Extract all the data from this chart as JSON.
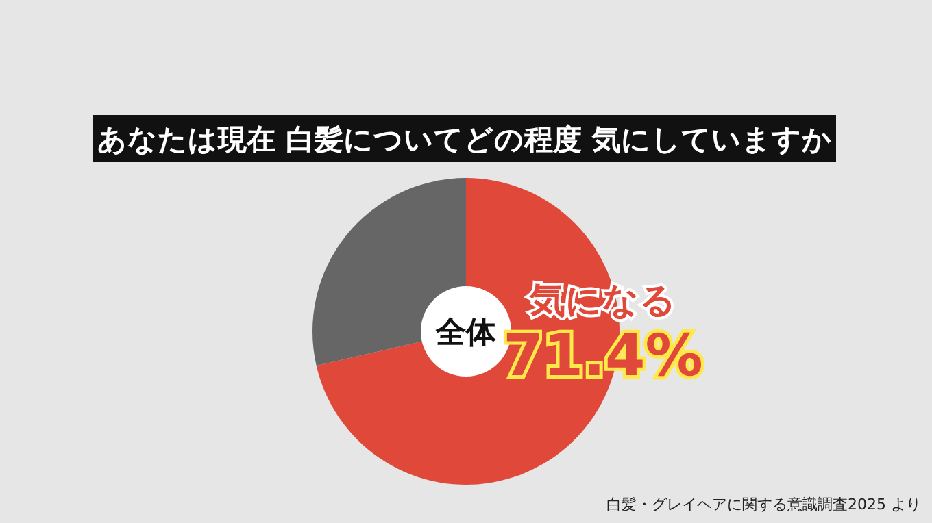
{
  "chart_data": {
    "type": "donut",
    "title": "あなたは現在 白髪についてどの程度 気にしていますか",
    "categories": [
      "気になる",
      null
    ],
    "values": [
      71.4,
      28.6
    ],
    "colors": [
      "#e0483a",
      "#666666"
    ],
    "value_labels": [
      "71.4%",
      null
    ],
    "annotations": [
      "全体",
      "白髪・グレイヘアに関する意識調査2025 より"
    ]
  }
}
